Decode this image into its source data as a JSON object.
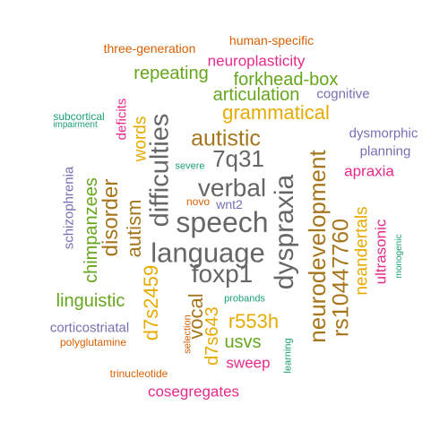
{
  "palette": {
    "teal": "#1b9e77",
    "orange": "#d95f02",
    "purple": "#7570b3",
    "magenta": "#e7298a",
    "green": "#66a61e",
    "gold": "#e6ab02",
    "brown": "#a6761d",
    "gray": "#666666"
  },
  "words": [
    {
      "text": "speech",
      "color": "#666666"
    },
    {
      "text": "language",
      "color": "#666666"
    },
    {
      "text": "dyspraxia",
      "color": "#666666"
    },
    {
      "text": "difficulties",
      "color": "#666666"
    },
    {
      "text": "verbal",
      "color": "#666666"
    },
    {
      "text": "foxp1",
      "color": "#666666"
    },
    {
      "text": "7q31",
      "color": "#666666"
    },
    {
      "text": "neurodevelopment",
      "color": "#a6761d"
    },
    {
      "text": "rs10447760",
      "color": "#a6761d"
    },
    {
      "text": "autistic",
      "color": "#a6761d"
    },
    {
      "text": "disorder",
      "color": "#a6761d"
    },
    {
      "text": "autism",
      "color": "#a6761d"
    },
    {
      "text": "vocal",
      "color": "#a6761d"
    },
    {
      "text": "grammatical",
      "color": "#e6ab02"
    },
    {
      "text": "words",
      "color": "#e6ab02"
    },
    {
      "text": "d7s2459",
      "color": "#e6ab02"
    },
    {
      "text": "d7s643",
      "color": "#e6ab02"
    },
    {
      "text": "r553h",
      "color": "#e6ab02"
    },
    {
      "text": "neandertals",
      "color": "#e6ab02"
    },
    {
      "text": "forkhead-box",
      "color": "#66a61e"
    },
    {
      "text": "articulation",
      "color": "#66a61e"
    },
    {
      "text": "repeating",
      "color": "#66a61e"
    },
    {
      "text": "chimpanzees",
      "color": "#66a61e"
    },
    {
      "text": "linguistic",
      "color": "#66a61e"
    },
    {
      "text": "usvs",
      "color": "#66a61e"
    },
    {
      "text": "neuroplasticity",
      "color": "#e7298a"
    },
    {
      "text": "apraxia",
      "color": "#e7298a"
    },
    {
      "text": "ultrasonic",
      "color": "#e7298a"
    },
    {
      "text": "sweep",
      "color": "#e7298a"
    },
    {
      "text": "cosegregates",
      "color": "#e7298a"
    },
    {
      "text": "deficits",
      "color": "#e7298a"
    },
    {
      "text": "wnt2",
      "color": "#7570b3"
    },
    {
      "text": "dysmorphic",
      "color": "#7570b3"
    },
    {
      "text": "planning",
      "color": "#7570b3"
    },
    {
      "text": "cognitive",
      "color": "#7570b3"
    },
    {
      "text": "schizophrenia",
      "color": "#7570b3"
    },
    {
      "text": "corticostriatal",
      "color": "#7570b3"
    },
    {
      "text": "human-specific",
      "color": "#d95f02"
    },
    {
      "text": "three-generation",
      "color": "#d95f02"
    },
    {
      "text": "polyglutamine",
      "color": "#d95f02"
    },
    {
      "text": "trinucleotide",
      "color": "#d95f02"
    },
    {
      "text": "selection",
      "color": "#d95f02"
    },
    {
      "text": "novo",
      "color": "#d95f02"
    },
    {
      "text": "subcortical",
      "color": "#1b9e77"
    },
    {
      "text": "impairment",
      "color": "#1b9e77"
    },
    {
      "text": "severe",
      "color": "#1b9e77"
    },
    {
      "text": "monogenic",
      "color": "#1b9e77"
    },
    {
      "text": "probands",
      "color": "#1b9e77"
    },
    {
      "text": "learning",
      "color": "#1b9e77"
    }
  ]
}
